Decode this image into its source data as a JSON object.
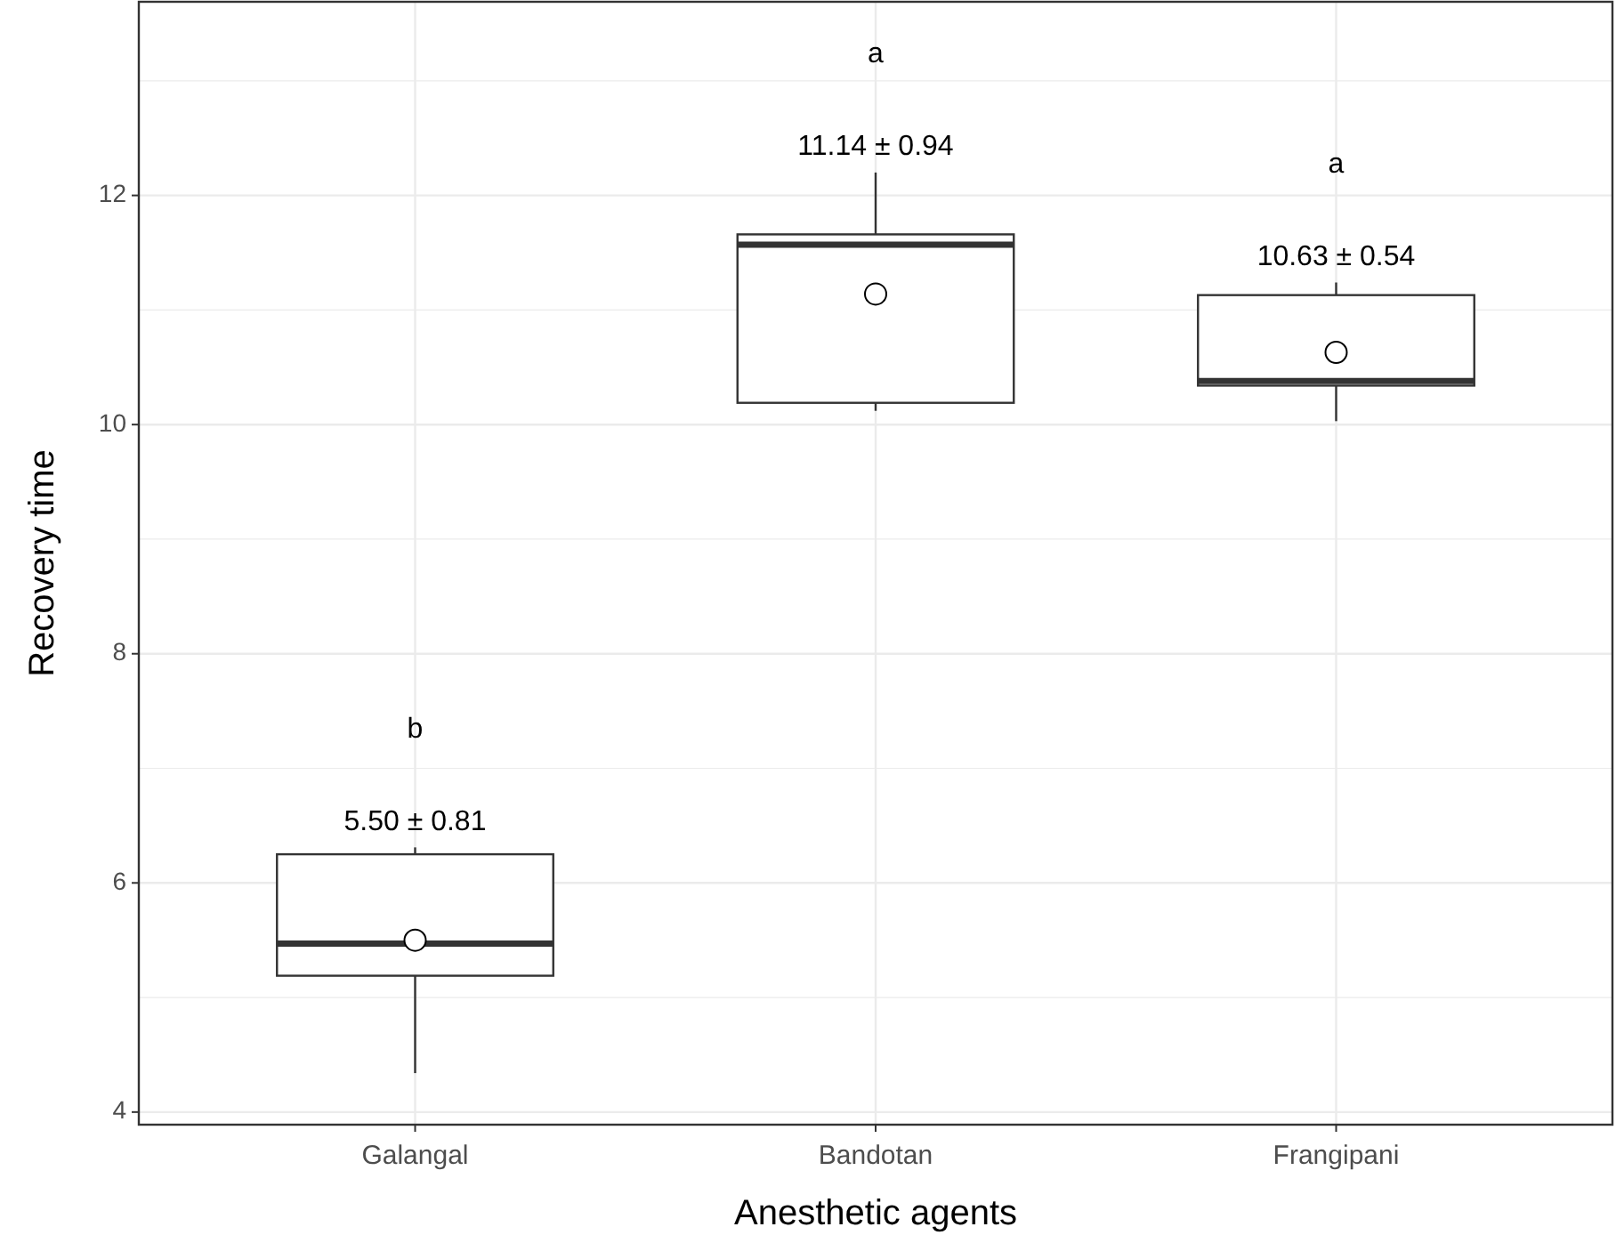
{
  "chart_data": {
    "type": "box",
    "xlabel": "Anesthetic agents",
    "ylabel": "Recovery time",
    "categories": [
      "Galangal",
      "Bandotan",
      "Frangipani"
    ],
    "boxes": [
      {
        "low": 4.34,
        "q1": 5.19,
        "median": 5.47,
        "q3": 6.25,
        "high": 6.31,
        "mean": 5.5
      },
      {
        "low": 10.12,
        "q1": 10.19,
        "median": 11.57,
        "q3": 11.66,
        "high": 12.2,
        "mean": 11.14
      },
      {
        "low": 10.03,
        "q1": 10.34,
        "median": 10.38,
        "q3": 11.13,
        "high": 11.24,
        "mean": 10.63
      }
    ],
    "ylim": [
      3.89,
      13.69
    ],
    "yticks": [
      4,
      6,
      8,
      10,
      12
    ],
    "grid": true,
    "annotations": [
      "5.50 ± 0.81",
      "b",
      "11.14 ± 0.94",
      "a",
      "10.63 ± 0.54",
      "a"
    ]
  }
}
